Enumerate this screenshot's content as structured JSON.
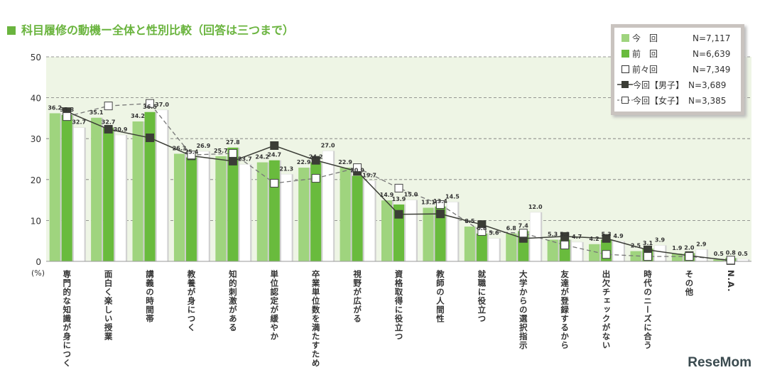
{
  "title": "科目履修の動機ー全体と性別比較（回答は三つまで）",
  "logo": "ReseMom",
  "colors": {
    "current": "#9fd47e",
    "previous": "#69bb3d",
    "before_previous": "#ffffff",
    "male": "#3b3d36",
    "female": "#ffffff",
    "title": "#6ab43e",
    "plot_bg": "#eef5e5"
  },
  "legend": [
    {
      "label": "今　回",
      "n": "N=7,117"
    },
    {
      "label": "前　回",
      "n": "N=6,639"
    },
    {
      "label": "前々回",
      "n": "N=7,349"
    },
    {
      "label": "今回【男子】",
      "n": "N=3,689"
    },
    {
      "label": "今回【女子】",
      "n": "N=3,385"
    }
  ],
  "chart_data": {
    "type": "bar",
    "title": "科目履修の動機ー全体と性別比較（回答は三つまで）",
    "ylabel": "(%)",
    "ylim": [
      0,
      50
    ],
    "yticks": [
      0,
      10,
      20,
      30,
      40,
      50
    ],
    "grid": true,
    "legend_position": "top-right",
    "categories": [
      "専門的な知識が身につく",
      "面白く楽しい授業",
      "講義の時間帯",
      "教養が身につく",
      "知的刺激がある",
      "単位認定が緩やか",
      "卒業単位数を満たすため",
      "視野が広がる",
      "資格取得に役立つ",
      "教師の人間性",
      "就職に役立つ",
      "大学からの選択指示",
      "友達が登録するから",
      "出欠チェックがない",
      "時代のニーズに合う",
      "その他",
      "N.A."
    ],
    "series": [
      {
        "name": "今　回",
        "kind": "bar",
        "values": [
          36.2,
          35.1,
          34.2,
          26.3,
          25.7,
          24.2,
          22.9,
          22.9,
          14.9,
          13.1,
          8.5,
          6.8,
          5.3,
          4.2,
          2.5,
          1.9,
          0.5
        ]
      },
      {
        "name": "前　回",
        "kind": "bar",
        "values": [
          35.8,
          32.7,
          36.5,
          25.4,
          27.8,
          24.7,
          24.2,
          20.9,
          13.9,
          13.4,
          6.8,
          7.4,
          5.3,
          5.3,
          3.1,
          2.0,
          0.8
        ]
      },
      {
        "name": "前々回",
        "kind": "bar",
        "values": [
          32.7,
          30.9,
          37.0,
          26.9,
          23.7,
          21.3,
          27.0,
          19.7,
          15.0,
          14.5,
          5.6,
          12.0,
          4.7,
          4.9,
          3.9,
          2.9,
          0.5
        ]
      },
      {
        "name": "今回【男子】",
        "kind": "line",
        "values": [
          36.6,
          32.3,
          30.2,
          25.8,
          24.5,
          28.3,
          24.7,
          22.0,
          11.5,
          11.6,
          9.0,
          5.6,
          6.1,
          5.6,
          2.8,
          1.4,
          0.2
        ]
      },
      {
        "name": "今回【女子】",
        "kind": "line",
        "values": [
          35.4,
          38.0,
          38.6,
          26.0,
          26.4,
          19.1,
          20.3,
          22.9,
          17.9,
          13.9,
          7.3,
          6.9,
          4.0,
          1.7,
          1.2,
          1.2,
          0.3
        ]
      }
    ]
  }
}
